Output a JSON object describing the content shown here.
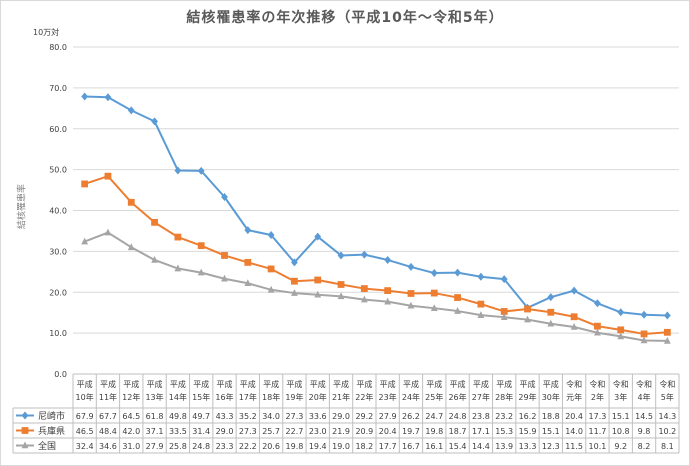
{
  "chart_data": {
    "type": "line",
    "title": "結核罹患率の年次推移（平成10年～令和5年）",
    "unit_label": "10万対",
    "ylabel": "結核罹患率",
    "ylim": [
      0,
      80
    ],
    "yticks": [
      "0.0",
      "10.0",
      "20.0",
      "30.0",
      "40.0",
      "50.0",
      "60.0",
      "70.0",
      "80.0"
    ],
    "grid": true,
    "legend": "data-table",
    "categories": [
      [
        "平成",
        "10年"
      ],
      [
        "平成",
        "11年"
      ],
      [
        "平成",
        "12年"
      ],
      [
        "平成",
        "13年"
      ],
      [
        "平成",
        "14年"
      ],
      [
        "平成",
        "15年"
      ],
      [
        "平成",
        "16年"
      ],
      [
        "平成",
        "17年"
      ],
      [
        "平成",
        "18年"
      ],
      [
        "平成",
        "19年"
      ],
      [
        "平成",
        "20年"
      ],
      [
        "平成",
        "21年"
      ],
      [
        "平成",
        "22年"
      ],
      [
        "平成",
        "23年"
      ],
      [
        "平成",
        "24年"
      ],
      [
        "平成",
        "25年"
      ],
      [
        "平成",
        "26年"
      ],
      [
        "平成",
        "27年"
      ],
      [
        "平成",
        "28年"
      ],
      [
        "平成",
        "29年"
      ],
      [
        "平成",
        "30年"
      ],
      [
        "令和",
        "元年"
      ],
      [
        "令和",
        "2年"
      ],
      [
        "令和",
        "3年"
      ],
      [
        "令和",
        "4年"
      ],
      [
        "令和",
        "5年"
      ]
    ],
    "series": [
      {
        "name": "尼崎市",
        "color": "#5b9bd5",
        "marker": "diamond",
        "values": [
          67.9,
          67.7,
          64.5,
          61.8,
          49.8,
          49.7,
          43.3,
          35.2,
          34.0,
          27.3,
          33.6,
          29.0,
          29.2,
          27.9,
          26.2,
          24.7,
          24.8,
          23.8,
          23.2,
          16.2,
          18.8,
          20.4,
          17.3,
          15.1,
          14.5,
          14.3
        ]
      },
      {
        "name": "兵庫県",
        "color": "#ed7d31",
        "marker": "square",
        "values": [
          46.5,
          48.4,
          42.0,
          37.1,
          33.5,
          31.4,
          29.0,
          27.3,
          25.7,
          22.7,
          23.0,
          21.9,
          20.9,
          20.4,
          19.7,
          19.8,
          18.7,
          17.1,
          15.3,
          15.9,
          15.1,
          14.0,
          11.7,
          10.8,
          9.8,
          10.2
        ]
      },
      {
        "name": "全国",
        "color": "#a5a5a5",
        "marker": "triangle",
        "values": [
          32.4,
          34.6,
          31.0,
          27.9,
          25.8,
          24.8,
          23.3,
          22.2,
          20.6,
          19.8,
          19.4,
          19.0,
          18.2,
          17.7,
          16.7,
          16.1,
          15.4,
          14.4,
          13.9,
          13.3,
          12.3,
          11.5,
          10.1,
          9.2,
          8.2,
          8.1
        ]
      }
    ],
    "value_labels": {
      "尼崎市": [
        "67.9",
        "67.7",
        "64.5",
        "61.8",
        "49.8",
        "49.7",
        "43.3",
        "35.2",
        "34.0",
        "27.3",
        "33.6",
        "29.0",
        "29.2",
        "27.9",
        "26.2",
        "24.7",
        "24.8",
        "23.8",
        "23.2",
        "16.2",
        "18.8",
        "20.4",
        "17.3",
        "15.1",
        "14.5",
        "14.3"
      ],
      "兵庫県": [
        "46.5",
        "48.4",
        "42.0",
        "37.1",
        "33.5",
        "31.4",
        "29.0",
        "27.3",
        "25.7",
        "22.7",
        "23.0",
        "21.9",
        "20.9",
        "20.4",
        "19.7",
        "19.8",
        "18.7",
        "17.1",
        "15.3",
        "15.9",
        "15.1",
        "14.0",
        "11.7",
        "10.8",
        "9.8",
        "10.2"
      ],
      "全国": [
        "32.4",
        "34.6",
        "31.0",
        "27.9",
        "25.8",
        "24.8",
        "23.3",
        "22.2",
        "20.6",
        "19.8",
        "19.4",
        "19.0",
        "18.2",
        "17.7",
        "16.7",
        "16.1",
        "15.4",
        "14.4",
        "13.9",
        "13.3",
        "12.3",
        "11.5",
        "10.1",
        "9.2",
        "8.2",
        "8.1"
      ]
    }
  }
}
